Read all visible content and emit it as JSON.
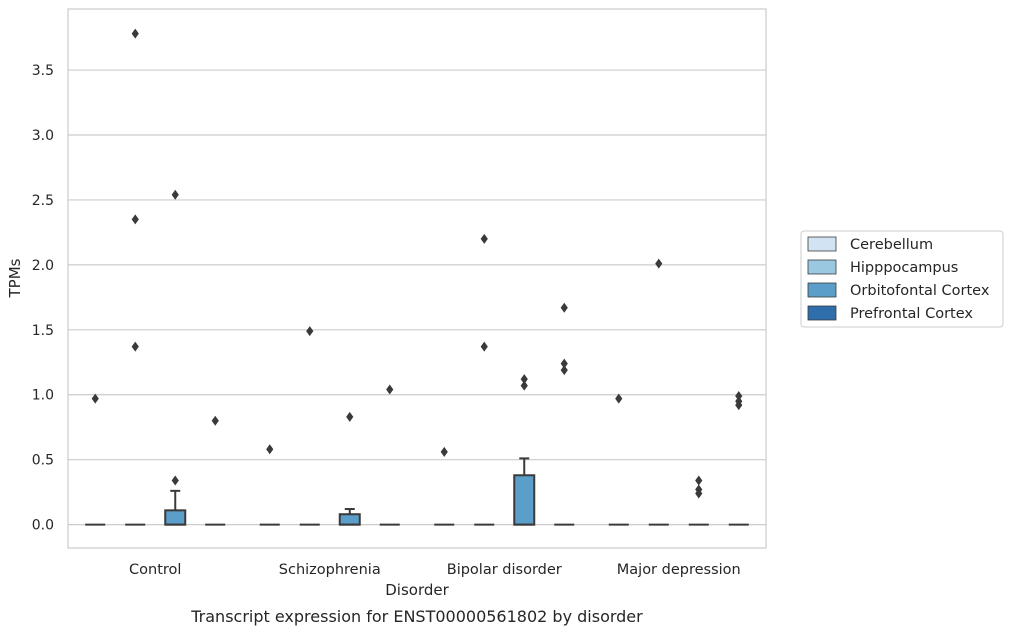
{
  "chart_data": {
    "type": "box",
    "title": "",
    "caption": "Transcript expression for ENST00000561802 by disorder",
    "xlabel": "Disorder",
    "ylabel": "TPMs",
    "ylim": [
      -0.18,
      3.97
    ],
    "yticks": [
      "0.0",
      "0.5",
      "1.0",
      "1.5",
      "2.0",
      "2.5",
      "3.0",
      "3.5"
    ],
    "grid": "horizontal",
    "legend_position": "outside-right",
    "categories": [
      "Control",
      "Schizophrenia",
      "Bipolar disorder",
      "Major depression"
    ],
    "series": [
      {
        "name": "Cerebellum",
        "color": "#d2e3f3"
      },
      {
        "name": "Hipppocampus",
        "color": "#9ac8e0"
      },
      {
        "name": "Orbitofontal Cortex",
        "color": "#5a9ec9"
      },
      {
        "name": "Prefrontal Cortex",
        "color": "#2e6eab"
      }
    ],
    "boxes": [
      {
        "category": "Control",
        "series": "Cerebellum",
        "q1": 0,
        "median": 0,
        "q3": 0,
        "whisker_low": 0,
        "whisker_high": 0,
        "outliers": [
          0.97
        ]
      },
      {
        "category": "Control",
        "series": "Hipppocampus",
        "q1": 0,
        "median": 0,
        "q3": 0,
        "whisker_low": 0,
        "whisker_high": 0,
        "outliers": [
          1.37,
          2.35,
          3.78
        ]
      },
      {
        "category": "Control",
        "series": "Orbitofontal Cortex",
        "q1": 0,
        "median": 0,
        "q3": 0.11,
        "whisker_low": 0,
        "whisker_high": 0.26,
        "outliers": [
          0.34,
          2.54
        ]
      },
      {
        "category": "Control",
        "series": "Prefrontal Cortex",
        "q1": 0,
        "median": 0,
        "q3": 0,
        "whisker_low": 0,
        "whisker_high": 0,
        "outliers": [
          0.8
        ]
      },
      {
        "category": "Schizophrenia",
        "series": "Cerebellum",
        "q1": 0,
        "median": 0,
        "q3": 0,
        "whisker_low": 0,
        "whisker_high": 0,
        "outliers": [
          0.58
        ]
      },
      {
        "category": "Schizophrenia",
        "series": "Hipppocampus",
        "q1": 0,
        "median": 0,
        "q3": 0,
        "whisker_low": 0,
        "whisker_high": 0,
        "outliers": [
          1.49
        ]
      },
      {
        "category": "Schizophrenia",
        "series": "Orbitofontal Cortex",
        "q1": 0,
        "median": 0,
        "q3": 0.08,
        "whisker_low": 0,
        "whisker_high": 0.12,
        "outliers": [
          0.83
        ]
      },
      {
        "category": "Schizophrenia",
        "series": "Prefrontal Cortex",
        "q1": 0,
        "median": 0,
        "q3": 0,
        "whisker_low": 0,
        "whisker_high": 0,
        "outliers": [
          1.04
        ]
      },
      {
        "category": "Bipolar disorder",
        "series": "Cerebellum",
        "q1": 0,
        "median": 0,
        "q3": 0,
        "whisker_low": 0,
        "whisker_high": 0,
        "outliers": [
          0.56
        ]
      },
      {
        "category": "Bipolar disorder",
        "series": "Hipppocampus",
        "q1": 0,
        "median": 0,
        "q3": 0,
        "whisker_low": 0,
        "whisker_high": 0,
        "outliers": [
          1.37,
          2.2
        ]
      },
      {
        "category": "Bipolar disorder",
        "series": "Orbitofontal Cortex",
        "q1": 0,
        "median": 0,
        "q3": 0.38,
        "whisker_low": 0,
        "whisker_high": 0.51,
        "outliers": [
          1.07,
          1.12
        ]
      },
      {
        "category": "Bipolar disorder",
        "series": "Prefrontal Cortex",
        "q1": 0,
        "median": 0,
        "q3": 0,
        "whisker_low": 0,
        "whisker_high": 0,
        "outliers": [
          1.19,
          1.24,
          1.67
        ]
      },
      {
        "category": "Major depression",
        "series": "Cerebellum",
        "q1": 0,
        "median": 0,
        "q3": 0,
        "whisker_low": 0,
        "whisker_high": 0,
        "outliers": [
          0.97
        ]
      },
      {
        "category": "Major depression",
        "series": "Hipppocampus",
        "q1": 0,
        "median": 0,
        "q3": 0,
        "whisker_low": 0,
        "whisker_high": 0,
        "outliers": [
          2.01
        ]
      },
      {
        "category": "Major depression",
        "series": "Orbitofontal Cortex",
        "q1": 0,
        "median": 0,
        "q3": 0,
        "whisker_low": 0,
        "whisker_high": 0,
        "outliers": [
          0.24,
          0.27,
          0.34
        ]
      },
      {
        "category": "Major depression",
        "series": "Prefrontal Cortex",
        "q1": 0,
        "median": 0,
        "q3": 0,
        "whisker_low": 0,
        "whisker_high": 0,
        "outliers": [
          0.92,
          0.95,
          0.99
        ]
      }
    ]
  }
}
